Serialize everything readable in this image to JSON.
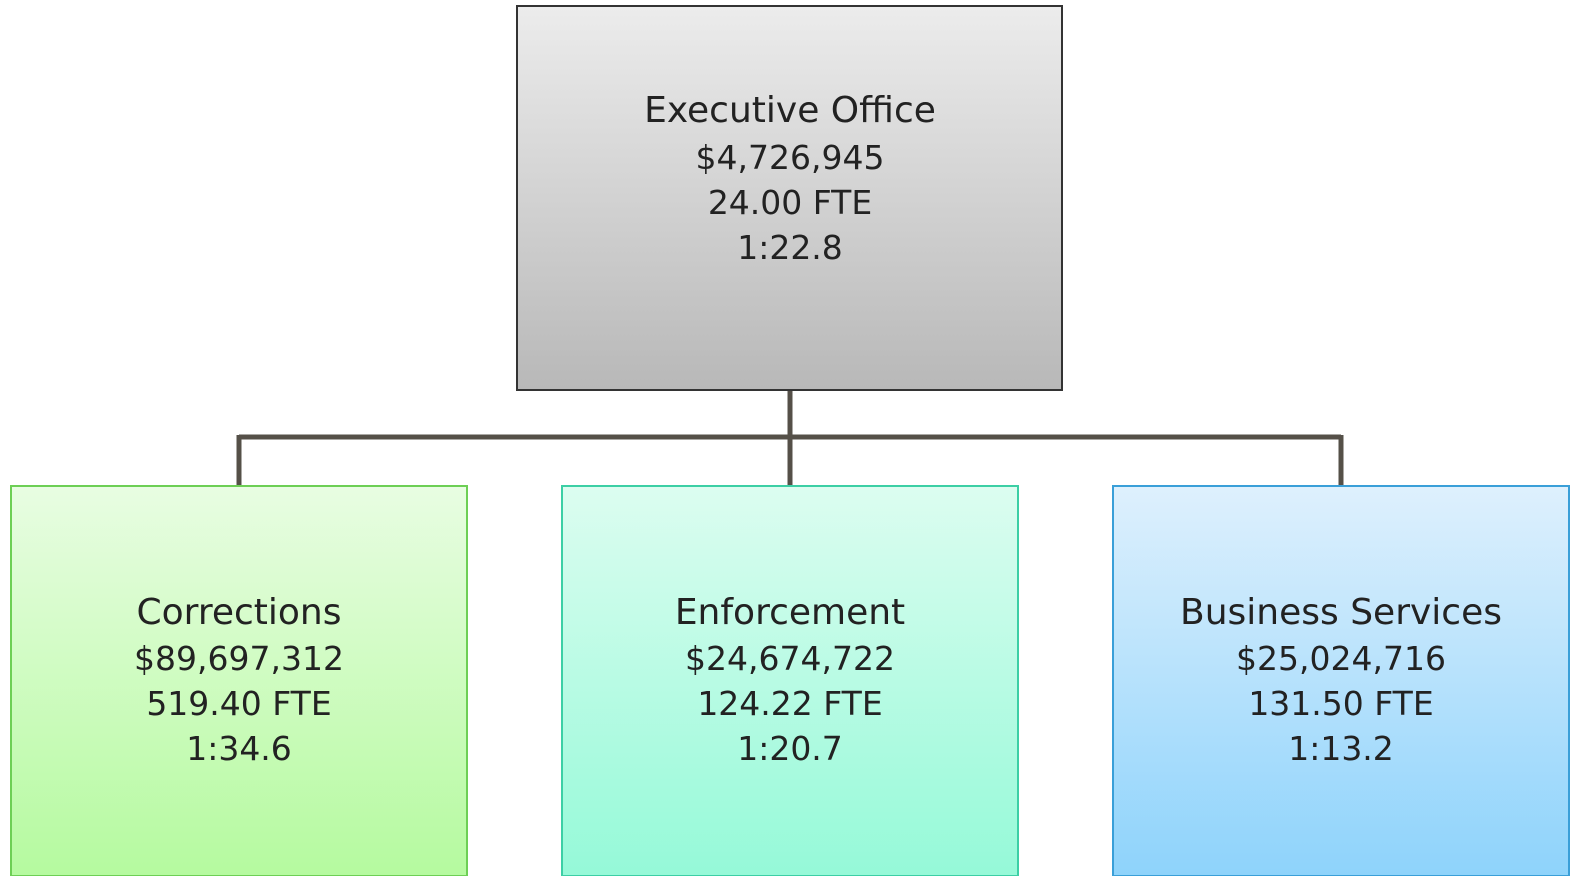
{
  "nodes": [
    {
      "label": "Executive Office",
      "budget": "$4,726,945",
      "fte": "24.00 FTE",
      "ratio": "1:22.8"
    },
    {
      "label": "Corrections",
      "budget": "$89,697,312",
      "fte": "519.40 FTE",
      "ratio": "1:34.6"
    },
    {
      "label": "Enforcement",
      "budget": "$24,674,722",
      "fte": "124.22 FTE",
      "ratio": "1:20.7"
    },
    {
      "label": "Business Services",
      "budget": "$25,024,716",
      "fte": "131.50 FTE",
      "ratio": "1:13.2"
    }
  ]
}
